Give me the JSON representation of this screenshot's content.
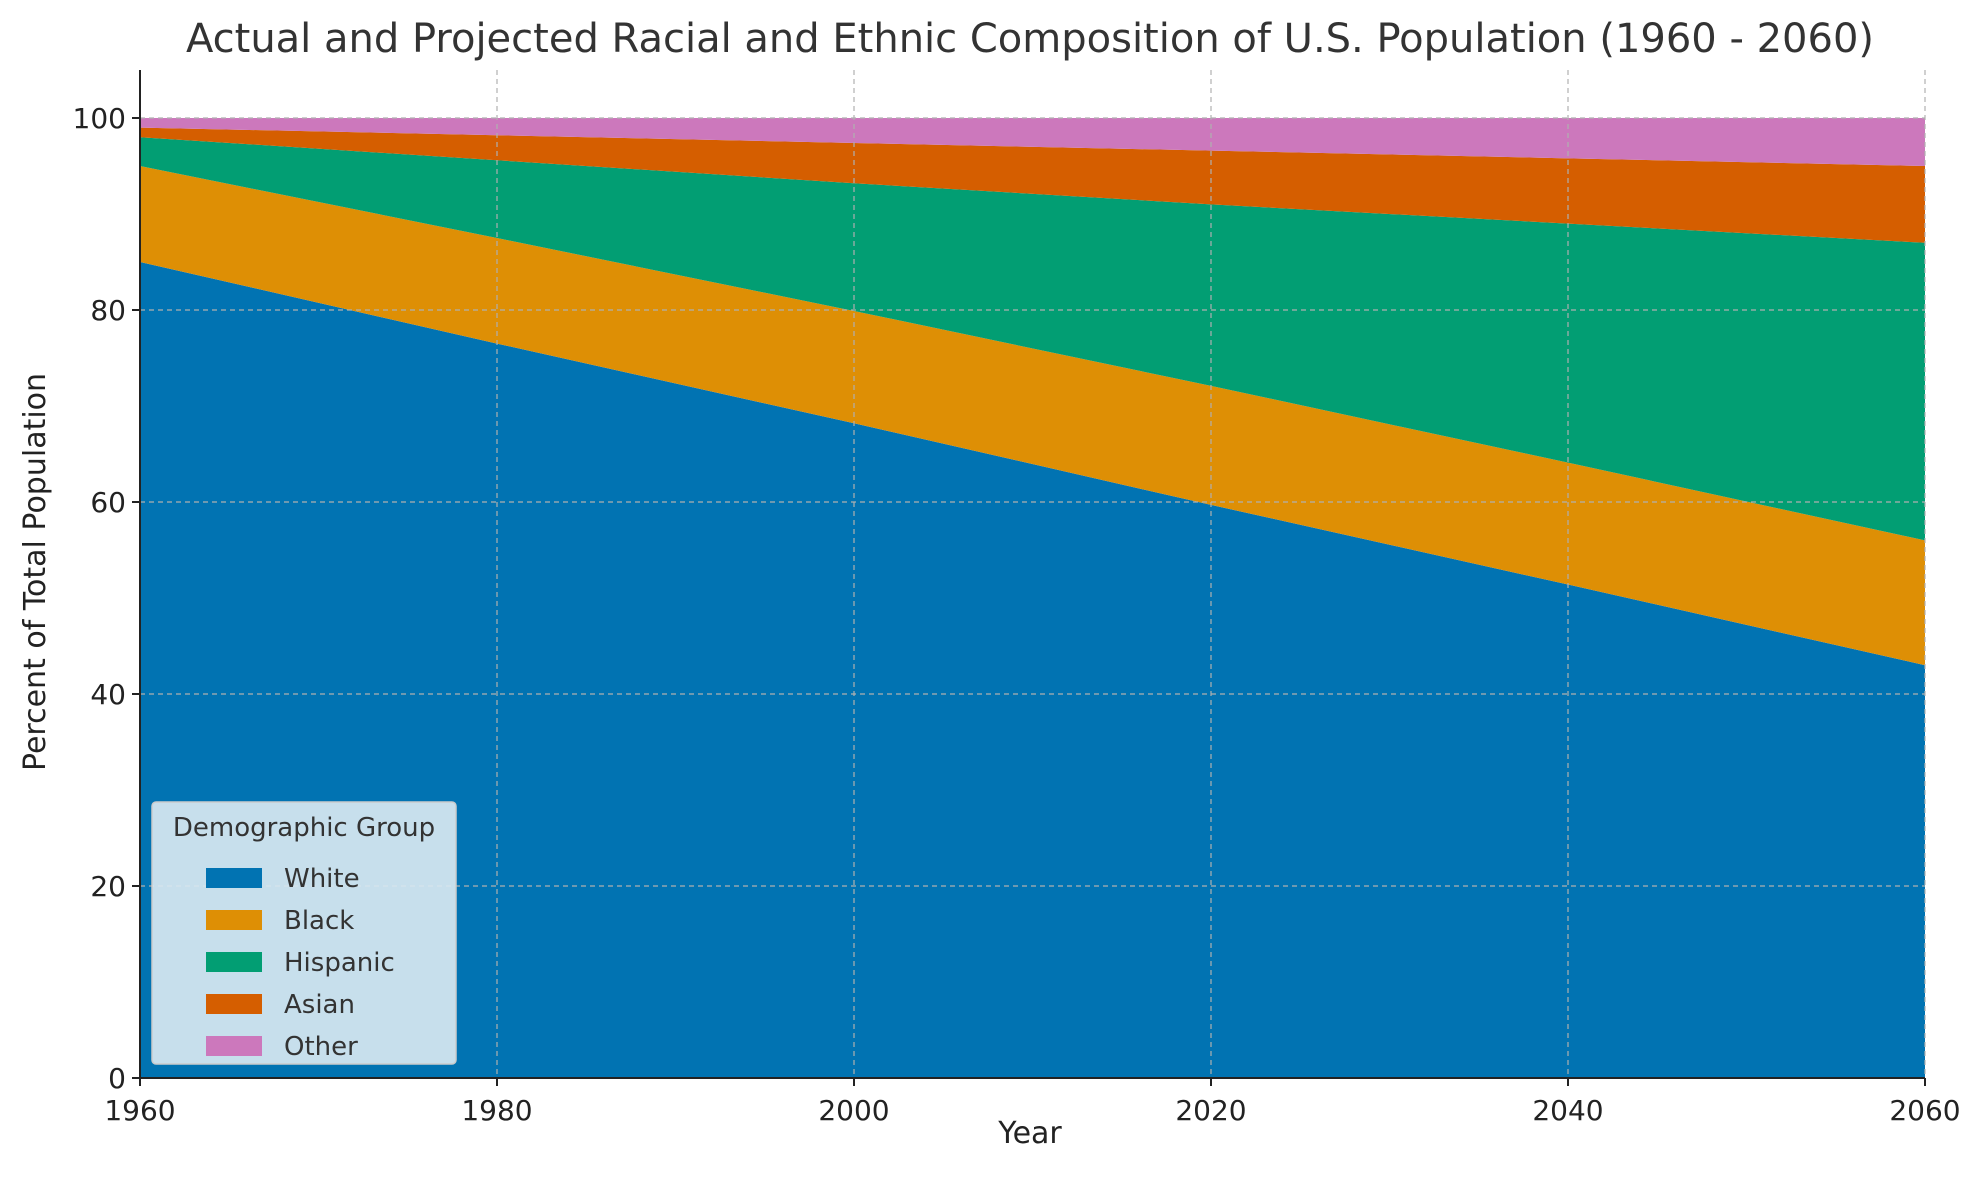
{
  "chart_data": {
    "type": "area",
    "stacked": true,
    "title": "Actual and Projected Racial and Ethnic Composition of U.S. Population (1960 - 2060)",
    "xlabel": "Year",
    "ylabel": "Percent of Total Population",
    "x": [
      1960,
      1980,
      2000,
      2020,
      2040,
      2060
    ],
    "xlim": [
      1960,
      2060
    ],
    "ylim": [
      0,
      105
    ],
    "xticks": [
      1960,
      1980,
      2000,
      2020,
      2040,
      2060
    ],
    "yticks": [
      0,
      20,
      40,
      60,
      80,
      100
    ],
    "grid": true,
    "legend": {
      "title": "Demographic Group",
      "placement": "lower-left"
    },
    "series": [
      {
        "name": "White",
        "color": "#0173b2",
        "values": [
          85,
          76.5,
          68.2,
          59.7,
          51.4,
          43
        ]
      },
      {
        "name": "Black",
        "color": "#de8f05",
        "values": [
          10,
          11,
          11.7,
          12.4,
          12.7,
          13
        ]
      },
      {
        "name": "Hispanic",
        "color": "#029e73",
        "values": [
          3,
          8.1,
          13.3,
          18.9,
          24.9,
          31
        ]
      },
      {
        "name": "Asian",
        "color": "#d55e00",
        "values": [
          1,
          2.6,
          4.2,
          5.6,
          6.8,
          8
        ]
      },
      {
        "name": "Other",
        "color": "#cc78bc",
        "values": [
          1,
          1.8,
          2.6,
          3.4,
          4.2,
          5
        ]
      }
    ]
  }
}
